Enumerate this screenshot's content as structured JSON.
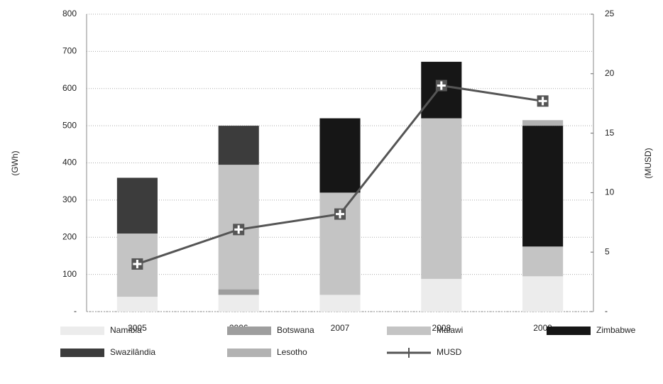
{
  "chart_data": {
    "type": "bar",
    "categories": [
      "2005",
      "2006",
      "2007",
      "2008",
      "2009"
    ],
    "ylabel": "(GWh)",
    "y2label": "(MUSD)",
    "ylim": [
      0,
      800
    ],
    "yticks": [
      {
        "value": 0,
        "label": "-"
      },
      100,
      200,
      300,
      400,
      500,
      600,
      700,
      800
    ],
    "y2lim": [
      0,
      25
    ],
    "y2ticks": [
      {
        "value": 0,
        "label": "-"
      },
      5,
      10,
      15,
      20,
      25
    ],
    "grid": true,
    "stacked": true,
    "legend": "bottom",
    "series": [
      {
        "name": "Namíbia",
        "color": "#ececec",
        "values": [
          40,
          45,
          45,
          88,
          95
        ]
      },
      {
        "name": "Botswana",
        "color": "#9e9e9e",
        "values": [
          0,
          15,
          0,
          0,
          0
        ]
      },
      {
        "name": "Malawi",
        "color": "#c4c4c4",
        "values": [
          170,
          335,
          275,
          432,
          80
        ]
      },
      {
        "name": "Zimbabwe",
        "color": "#161616",
        "values": [
          0,
          0,
          200,
          152,
          325
        ]
      },
      {
        "name": "Swazilândia",
        "color": "#3c3c3c",
        "values": [
          150,
          105,
          0,
          0,
          0
        ]
      },
      {
        "name": "Lesotho",
        "color": "#b2b2b2",
        "values": [
          0,
          0,
          0,
          0,
          15
        ]
      },
      {
        "name": "MUSD",
        "type": "line",
        "axis": "y2",
        "color": "#555555",
        "values": [
          4.0,
          6.9,
          8.2,
          19.0,
          17.7
        ]
      }
    ]
  }
}
